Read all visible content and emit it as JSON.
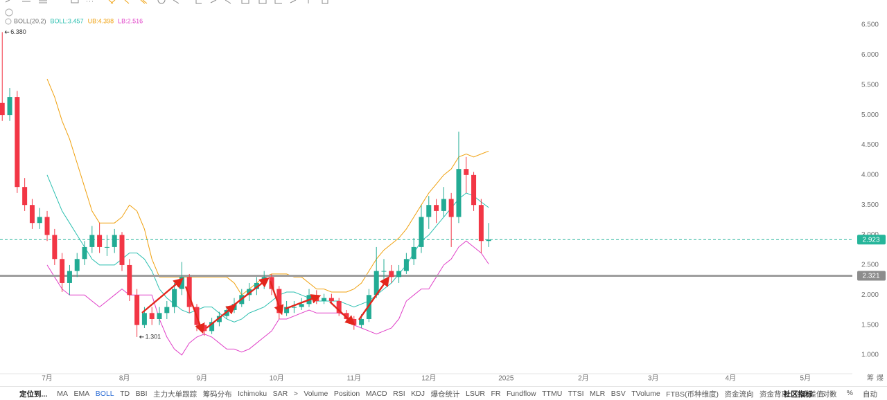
{
  "chart_data": {
    "type": "candlestick",
    "x": [
      0,
      3,
      6,
      9,
      12,
      15,
      18,
      21,
      24,
      27,
      30,
      33,
      36,
      39,
      42,
      45,
      48,
      51,
      54,
      57,
      60,
      63,
      66,
      69,
      72,
      75,
      78,
      81,
      84,
      87,
      90,
      93,
      96,
      99,
      102,
      105,
      108,
      111,
      114,
      117,
      120,
      123,
      126,
      129,
      132,
      135,
      138,
      141,
      144,
      147,
      150,
      153,
      156,
      159,
      162,
      165,
      168,
      171,
      174,
      177,
      180,
      183,
      186,
      189,
      192,
      195
    ],
    "open": [
      5.2,
      5.0,
      5.3,
      3.8,
      3.5,
      3.2,
      3.3,
      3.0,
      2.6,
      2.2,
      2.4,
      2.6,
      2.8,
      3.0,
      2.8,
      2.8,
      3.0,
      2.5,
      2.0,
      1.5,
      1.7,
      1.6,
      1.7,
      1.8,
      2.1,
      2.3,
      1.8,
      1.5,
      1.4,
      1.55,
      1.65,
      1.75,
      1.85,
      2.0,
      2.1,
      2.2,
      2.3,
      2.1,
      1.7,
      1.8,
      1.8,
      1.85,
      2.0,
      1.9,
      1.95,
      1.9,
      1.7,
      1.6,
      1.5,
      1.6,
      2.0,
      2.4,
      2.4,
      2.3,
      2.4,
      2.6,
      2.8,
      3.3,
      3.5,
      3.4,
      3.6,
      3.3,
      4.1,
      4.0,
      3.5,
      2.9
    ],
    "high": [
      6.38,
      5.45,
      5.4,
      3.95,
      3.6,
      3.45,
      3.4,
      3.1,
      2.7,
      2.5,
      2.7,
      2.9,
      3.15,
      3.2,
      3.0,
      3.1,
      3.05,
      2.6,
      2.1,
      1.8,
      1.8,
      1.8,
      1.9,
      2.2,
      2.55,
      2.35,
      1.85,
      1.55,
      1.62,
      1.72,
      1.82,
      1.95,
      2.1,
      2.2,
      2.3,
      2.4,
      2.35,
      2.15,
      1.9,
      1.9,
      1.95,
      2.1,
      2.08,
      2.02,
      2.02,
      1.95,
      1.75,
      1.65,
      1.68,
      2.1,
      2.8,
      2.6,
      2.5,
      2.5,
      2.7,
      2.95,
      3.5,
      3.65,
      3.6,
      3.8,
      3.7,
      4.72,
      4.3,
      4.05,
      3.6,
      3.2
    ],
    "low": [
      4.9,
      4.9,
      3.7,
      3.4,
      3.1,
      3.1,
      2.9,
      2.5,
      2.05,
      2.0,
      2.3,
      2.5,
      2.7,
      2.7,
      2.65,
      2.7,
      2.4,
      1.9,
      1.301,
      1.45,
      1.5,
      1.5,
      1.6,
      1.7,
      2.0,
      1.7,
      1.4,
      1.32,
      1.35,
      1.48,
      1.6,
      1.7,
      1.8,
      1.9,
      2.0,
      2.1,
      2.0,
      1.6,
      1.65,
      1.7,
      1.75,
      1.8,
      1.85,
      1.85,
      1.85,
      1.65,
      1.55,
      1.42,
      1.45,
      1.55,
      1.95,
      2.2,
      2.2,
      2.2,
      2.35,
      2.5,
      2.7,
      3.1,
      3.2,
      3.3,
      2.8,
      3.2,
      3.7,
      3.4,
      2.7,
      2.8
    ],
    "close": [
      5.0,
      5.3,
      3.8,
      3.5,
      3.2,
      3.3,
      3.0,
      2.6,
      2.2,
      2.4,
      2.6,
      2.8,
      3.0,
      2.8,
      2.8,
      3.0,
      2.5,
      2.0,
      1.5,
      1.7,
      1.6,
      1.7,
      1.8,
      2.1,
      2.3,
      1.8,
      1.5,
      1.4,
      1.55,
      1.65,
      1.75,
      1.85,
      2.0,
      2.1,
      2.2,
      2.3,
      2.1,
      1.7,
      1.8,
      1.8,
      1.85,
      2.0,
      1.9,
      1.95,
      1.9,
      1.7,
      1.6,
      1.5,
      1.6,
      2.0,
      2.4,
      2.4,
      2.3,
      2.4,
      2.6,
      2.8,
      3.3,
      3.5,
      3.4,
      3.6,
      3.3,
      4.1,
      4.0,
      3.5,
      2.9,
      2.923
    ],
    "up_color": "#22ab94",
    "down_color": "#f23645",
    "xlim": [
      -0.9,
      340.8
    ],
    "xticks": [
      {
        "value": 18,
        "label": "7月"
      },
      {
        "value": 49,
        "label": "8月"
      },
      {
        "value": 80,
        "label": "9月"
      },
      {
        "value": 110,
        "label": "10月"
      },
      {
        "value": 141,
        "label": "11月"
      },
      {
        "value": 171,
        "label": "12月"
      },
      {
        "value": 202,
        "label": "2025"
      },
      {
        "value": 233,
        "label": "2月"
      },
      {
        "value": 261,
        "label": "3月"
      },
      {
        "value": 292,
        "label": "4月"
      },
      {
        "value": 322,
        "label": "5月"
      }
    ],
    "ylim": [
      0.689,
      6.777
    ],
    "yticks": [
      {
        "value": 6.5,
        "label": "6.500"
      },
      {
        "value": 6.0,
        "label": "6.000"
      },
      {
        "value": 5.5,
        "label": "5.500"
      },
      {
        "value": 5.0,
        "label": "5.000"
      },
      {
        "value": 4.5,
        "label": "4.500"
      },
      {
        "value": 4.0,
        "label": "4.000"
      },
      {
        "value": 3.5,
        "label": "3.500"
      },
      {
        "value": 3.0,
        "label": "3.000"
      },
      {
        "value": 2.5,
        "label": "2.500"
      },
      {
        "value": 2.0,
        "label": "2.000"
      },
      {
        "value": 1.5,
        "label": "1.500"
      },
      {
        "value": 1.0,
        "label": "1.000"
      }
    ],
    "indicator": {
      "label": "BOLL(20,2)",
      "x": [
        18,
        21,
        24,
        27,
        30,
        33,
        36,
        39,
        42,
        45,
        48,
        51,
        54,
        57,
        60,
        63,
        66,
        69,
        72,
        75,
        78,
        81,
        84,
        87,
        90,
        93,
        96,
        99,
        102,
        105,
        108,
        111,
        114,
        117,
        120,
        123,
        126,
        129,
        132,
        135,
        138,
        141,
        144,
        147,
        150,
        153,
        156,
        159,
        162,
        165,
        168,
        171,
        174,
        177,
        180,
        183,
        186,
        189,
        192,
        195
      ],
      "series": [
        {
          "legend": "BOLL:3.457",
          "color": "#2bbfb0",
          "values": [
            4.0,
            3.7,
            3.4,
            3.2,
            3.0,
            2.8,
            2.6,
            2.5,
            2.5,
            2.5,
            2.6,
            2.7,
            2.7,
            2.6,
            2.4,
            2.1,
            1.95,
            1.85,
            1.75,
            1.7,
            1.75,
            1.8,
            1.8,
            1.7,
            1.6,
            1.55,
            1.6,
            1.7,
            1.75,
            1.8,
            1.9,
            2.0,
            2.05,
            2.05,
            2.0,
            1.95,
            1.9,
            1.9,
            1.9,
            1.9,
            1.85,
            1.8,
            1.85,
            1.9,
            2.0,
            2.1,
            2.2,
            2.35,
            2.5,
            2.7,
            2.9,
            3.0,
            3.15,
            3.3,
            3.45,
            3.6,
            3.7,
            3.65,
            3.55,
            3.457
          ]
        },
        {
          "legend": "UB:4.398",
          "color": "#f0a10f",
          "values": [
            5.6,
            5.3,
            4.9,
            4.6,
            4.2,
            3.8,
            3.4,
            3.2,
            3.2,
            3.2,
            3.3,
            3.5,
            3.4,
            3.1,
            2.6,
            2.3,
            2.3,
            2.3,
            2.3,
            2.3,
            2.3,
            2.3,
            2.3,
            2.3,
            2.3,
            2.2,
            2.0,
            2.1,
            2.2,
            2.3,
            2.35,
            2.35,
            2.35,
            2.3,
            2.3,
            2.2,
            2.1,
            2.1,
            2.05,
            2.05,
            2.05,
            2.1,
            2.2,
            2.4,
            2.6,
            2.75,
            2.85,
            2.95,
            3.1,
            3.3,
            3.5,
            3.7,
            3.85,
            4.0,
            4.1,
            4.3,
            4.35,
            4.3,
            4.35,
            4.398
          ]
        },
        {
          "legend": "LB:2.516",
          "color": "#e040c8",
          "values": [
            2.5,
            2.3,
            2.1,
            2.0,
            2.0,
            2.0,
            1.9,
            1.8,
            1.9,
            2.0,
            2.1,
            2.0,
            2.0,
            2.0,
            2.0,
            1.6,
            1.3,
            1.1,
            1.0,
            1.2,
            1.3,
            1.35,
            1.3,
            1.2,
            1.1,
            1.1,
            1.05,
            1.1,
            1.2,
            1.3,
            1.4,
            1.6,
            1.6,
            1.65,
            1.7,
            1.75,
            1.7,
            1.7,
            1.7,
            1.7,
            1.65,
            1.5,
            1.45,
            1.4,
            1.35,
            1.4,
            1.45,
            1.6,
            1.9,
            2.0,
            2.1,
            2.1,
            2.3,
            2.5,
            2.6,
            2.8,
            2.9,
            2.8,
            2.7,
            2.516
          ]
        }
      ]
    },
    "annotations": [
      {
        "label": "6.380",
        "x": 0,
        "y": 6.38
      },
      {
        "label": "1.301",
        "x": 54,
        "y": 1.301
      }
    ],
    "price_lines": [
      {
        "value": 2.923,
        "label": "2.923",
        "color": "#26b59a",
        "style": "dashed"
      },
      {
        "value": 2.321,
        "label": "2.321",
        "color": "#9e9e9e",
        "style": "solid"
      }
    ],
    "axis_corner": [
      "筹",
      "爆"
    ]
  },
  "indicator_bar": {
    "locate": "定位到...",
    "items": [
      "MA",
      "EMA",
      "BOLL",
      "TD",
      "BBI",
      "主力大单跟踪",
      "筹码分布",
      "Ichimoku",
      "SAR",
      ">",
      "Volume",
      "Position",
      "MACD",
      "RSI",
      "KDJ",
      "爆仓统计",
      "LSUR",
      "FR",
      "Fundflow",
      "TTMU",
      "TTSI",
      "MLR",
      "BSV",
      "TVolume",
      "FTBS(币种维度)",
      "资金流向",
      "资金背离",
      "持仓差值",
      ">"
    ],
    "active": "BOLL",
    "right": [
      "社区指标",
      "对数",
      "%",
      "自动"
    ]
  }
}
